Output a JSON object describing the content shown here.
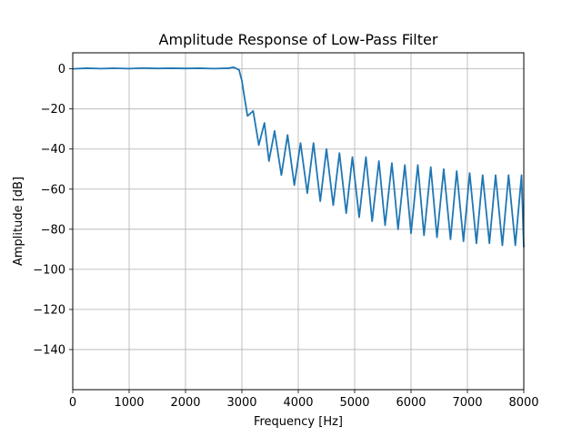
{
  "chart_data": {
    "type": "line",
    "title": "Amplitude Response of Low-Pass Filter",
    "xlabel": "Frequency [Hz]",
    "ylabel": "Amplitude [dB]",
    "xlim": [
      0,
      8000
    ],
    "ylim": [
      -160,
      8
    ],
    "xticks": [
      0,
      1000,
      2000,
      3000,
      4000,
      5000,
      6000,
      7000,
      8000
    ],
    "yticks": [
      0,
      -20,
      -40,
      -60,
      -80,
      -100,
      -120,
      -140
    ],
    "grid": true,
    "color": "#1f77b4",
    "series": [
      {
        "x": [
          0,
          250,
          500,
          750,
          1000,
          1250,
          1500,
          1750,
          2000,
          2250,
          2500,
          2750,
          2850,
          2950,
          3000,
          3050,
          3100,
          3200,
          3300,
          3400,
          3480,
          3580,
          3700,
          3810,
          3930,
          4040,
          4160,
          4270,
          4390,
          4500,
          4620,
          4730,
          4850,
          4960,
          5080,
          5200,
          5310,
          5430,
          5540,
          5660,
          5770,
          5890,
          6000,
          6120,
          6230,
          6350,
          6460,
          6580,
          6700,
          6810,
          6930,
          7040,
          7160,
          7270,
          7390,
          7500,
          7620,
          7730,
          7850,
          7960,
          8000
        ],
        "y": [
          0,
          0.3,
          0.1,
          0.3,
          0.1,
          0.4,
          0.2,
          0.3,
          0.2,
          0.3,
          0.1,
          0.3,
          0.8,
          -0.5,
          -6,
          -15,
          -23.5,
          -21,
          -38,
          -27,
          -46,
          -31,
          -53,
          -33,
          -58,
          -37,
          -62,
          -37,
          -66,
          -40,
          -68,
          -42,
          -72,
          -44,
          -74,
          -44,
          -76,
          -46,
          -78,
          -47,
          -80,
          -48,
          -82,
          -48,
          -83,
          -49,
          -84,
          -50,
          -85,
          -51,
          -86,
          -52,
          -87,
          -53,
          -87,
          -53,
          -88,
          -53,
          -88,
          -53,
          -89
        ]
      }
    ]
  }
}
